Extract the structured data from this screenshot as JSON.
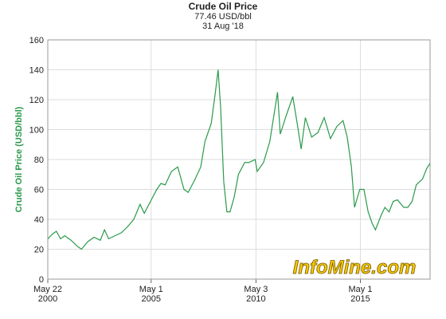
{
  "chart_data": {
    "type": "line",
    "title": "Crude Oil Price",
    "subtitle": [
      "77.46 USD/bbl",
      "31 Aug '18"
    ],
    "ylabel": "Crude Oil Price (USD/bbl)",
    "watermark": "InfoMine.com",
    "x": [
      2000.4,
      2000.6,
      2000.8,
      2001.0,
      2001.2,
      2001.5,
      2001.8,
      2002.0,
      2002.3,
      2002.6,
      2002.9,
      2003.1,
      2003.3,
      2003.6,
      2003.9,
      2004.2,
      2004.5,
      2004.8,
      2005.0,
      2005.3,
      2005.6,
      2005.8,
      2006.0,
      2006.3,
      2006.6,
      2006.9,
      2007.1,
      2007.4,
      2007.7,
      2007.9,
      2008.2,
      2008.4,
      2008.53,
      2008.65,
      2008.8,
      2008.95,
      2009.1,
      2009.3,
      2009.5,
      2009.8,
      2010.0,
      2010.3,
      2010.4,
      2010.7,
      2011.0,
      2011.37,
      2011.5,
      2011.8,
      2012.1,
      2012.3,
      2012.5,
      2012.7,
      2013.0,
      2013.3,
      2013.6,
      2013.9,
      2014.2,
      2014.5,
      2014.7,
      2014.9,
      2015.05,
      2015.3,
      2015.5,
      2015.7,
      2015.9,
      2016.05,
      2016.3,
      2016.5,
      2016.7,
      2016.9,
      2017.1,
      2017.4,
      2017.6,
      2017.8,
      2018.0,
      2018.3,
      2018.5,
      2018.66
    ],
    "series": [
      {
        "name": "Crude Oil Price",
        "color": "#2a9a4a",
        "values": [
          27,
          30,
          32,
          27,
          29,
          26,
          22,
          20,
          25,
          28,
          26,
          33,
          27,
          29,
          31,
          35,
          40,
          50,
          44,
          52,
          60,
          64,
          63,
          72,
          75,
          60,
          58,
          66,
          75,
          92,
          104,
          125,
          140,
          115,
          65,
          45,
          45,
          55,
          70,
          78,
          78,
          80,
          72,
          78,
          92,
          125,
          97,
          110,
          122,
          105,
          87,
          108,
          95,
          98,
          108,
          94,
          102,
          106,
          95,
          75,
          48,
          60,
          60,
          45,
          37,
          33,
          42,
          48,
          45,
          52,
          53,
          48,
          48,
          52,
          63,
          67,
          74,
          77.46
        ]
      }
    ],
    "xlim": [
      2000.39,
      2018.66
    ],
    "xticks": [
      {
        "value": 2000.39,
        "label": "May 22\n2000"
      },
      {
        "value": 2005.33,
        "label": "May 1\n2005"
      },
      {
        "value": 2010.34,
        "label": "May 3\n2010"
      },
      {
        "value": 2015.33,
        "label": "May 1\n2015"
      }
    ],
    "ylim": [
      0,
      160
    ],
    "yticks": [
      0,
      20,
      40,
      60,
      80,
      100,
      120,
      140,
      160
    ],
    "grid": true
  }
}
